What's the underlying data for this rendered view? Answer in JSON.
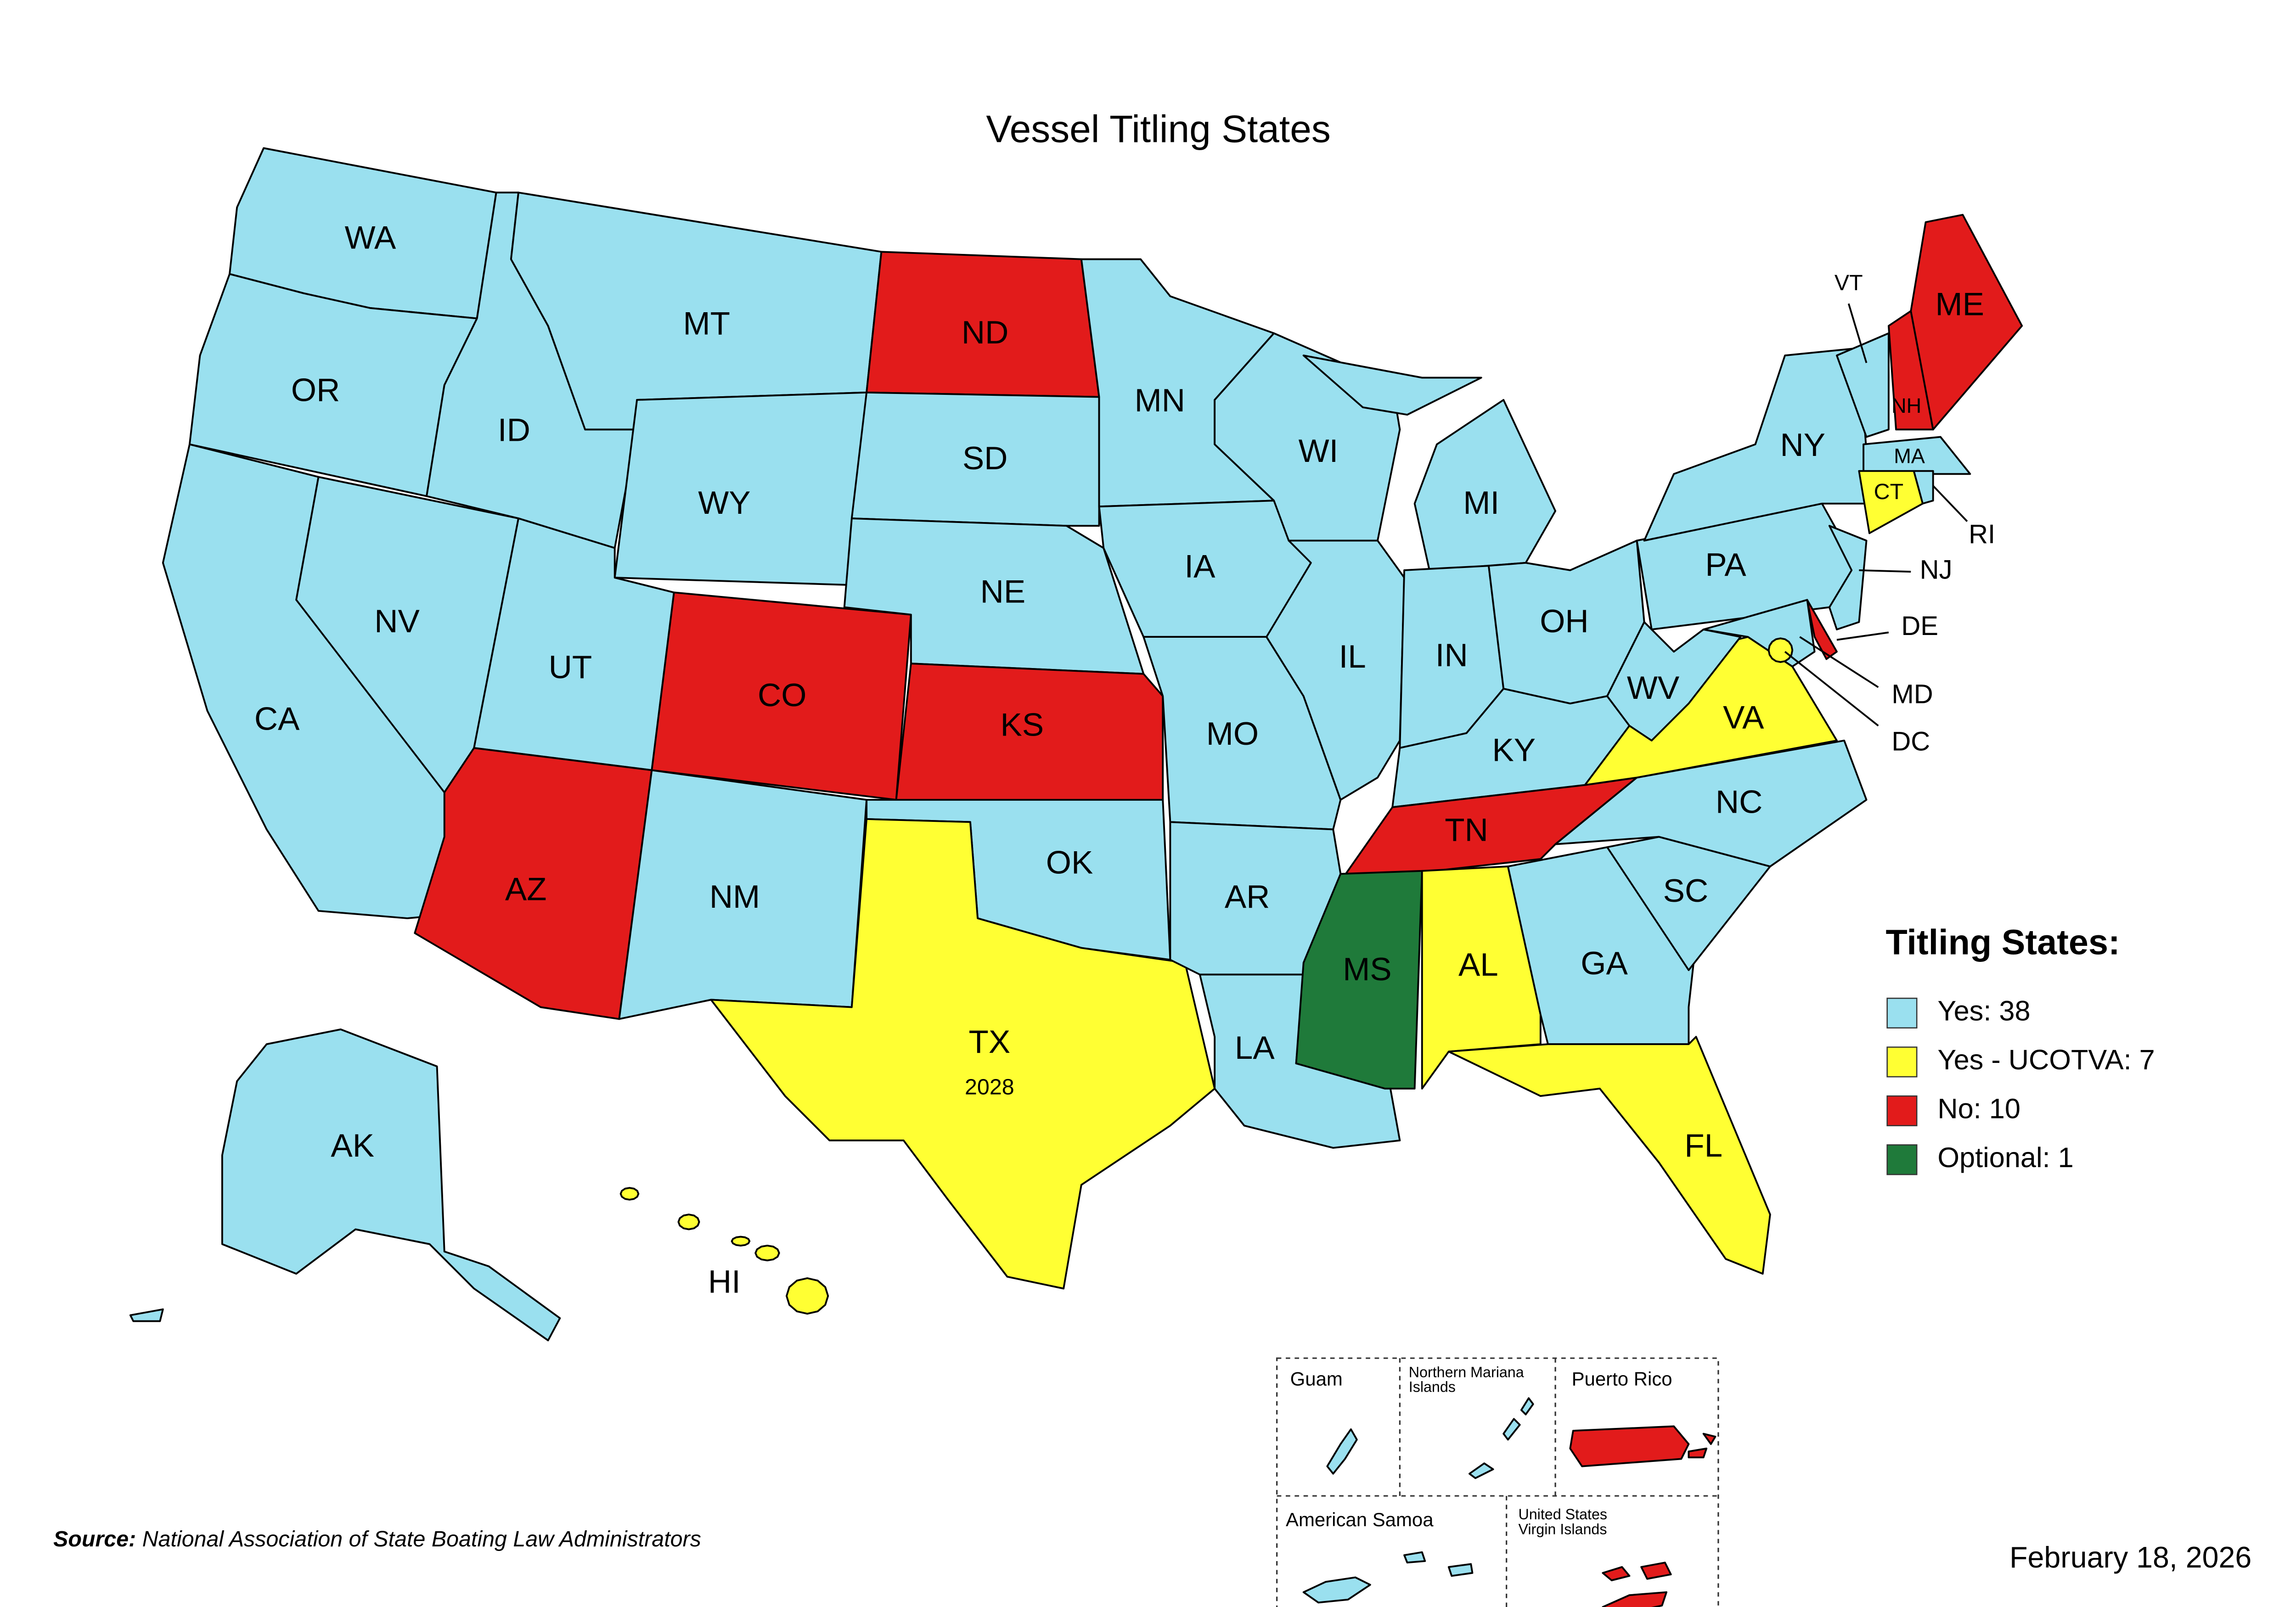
{
  "title": "Vessel Titling States",
  "legend": {
    "title": "Titling States:",
    "items": [
      {
        "label": "Yes: 38",
        "color": "#9ae0ef"
      },
      {
        "label": "Yes - UCOTVA: 7",
        "color": "#ffff33"
      },
      {
        "label": "No: 10",
        "color": "#e21b1b"
      },
      {
        "label": "Optional: 1",
        "color": "#1f7a3a"
      }
    ]
  },
  "states": [
    {
      "abbr": "WA",
      "category": 0
    },
    {
      "abbr": "OR",
      "category": 0
    },
    {
      "abbr": "CA",
      "category": 0
    },
    {
      "abbr": "NV",
      "category": 0
    },
    {
      "abbr": "ID",
      "category": 0
    },
    {
      "abbr": "MT",
      "category": 0
    },
    {
      "abbr": "WY",
      "category": 0
    },
    {
      "abbr": "UT",
      "category": 0
    },
    {
      "abbr": "CO",
      "category": 2
    },
    {
      "abbr": "AZ",
      "category": 2
    },
    {
      "abbr": "NM",
      "category": 0
    },
    {
      "abbr": "ND",
      "category": 2
    },
    {
      "abbr": "SD",
      "category": 0
    },
    {
      "abbr": "NE",
      "category": 0
    },
    {
      "abbr": "KS",
      "category": 2
    },
    {
      "abbr": "OK",
      "category": 0
    },
    {
      "abbr": "TX",
      "category": 1,
      "note": "2028"
    },
    {
      "abbr": "MN",
      "category": 0
    },
    {
      "abbr": "IA",
      "category": 0
    },
    {
      "abbr": "MO",
      "category": 0
    },
    {
      "abbr": "AR",
      "category": 0
    },
    {
      "abbr": "LA",
      "category": 0
    },
    {
      "abbr": "WI",
      "category": 0
    },
    {
      "abbr": "IL",
      "category": 0
    },
    {
      "abbr": "MI",
      "category": 0
    },
    {
      "abbr": "IN",
      "category": 0
    },
    {
      "abbr": "OH",
      "category": 0
    },
    {
      "abbr": "KY",
      "category": 0
    },
    {
      "abbr": "TN",
      "category": 2
    },
    {
      "abbr": "MS",
      "category": 3
    },
    {
      "abbr": "AL",
      "category": 1
    },
    {
      "abbr": "GA",
      "category": 0
    },
    {
      "abbr": "FL",
      "category": 1
    },
    {
      "abbr": "SC",
      "category": 0
    },
    {
      "abbr": "NC",
      "category": 0
    },
    {
      "abbr": "VA",
      "category": 1
    },
    {
      "abbr": "WV",
      "category": 0
    },
    {
      "abbr": "PA",
      "category": 0
    },
    {
      "abbr": "NY",
      "category": 0
    },
    {
      "abbr": "VT",
      "category": 0
    },
    {
      "abbr": "NH",
      "category": 2
    },
    {
      "abbr": "ME",
      "category": 2
    },
    {
      "abbr": "MA",
      "category": 0
    },
    {
      "abbr": "CT",
      "category": 1
    },
    {
      "abbr": "RI",
      "category": 0
    },
    {
      "abbr": "NJ",
      "category": 0
    },
    {
      "abbr": "DE",
      "category": 2
    },
    {
      "abbr": "MD",
      "category": 0
    },
    {
      "abbr": "DC",
      "category": 1
    },
    {
      "abbr": "AK",
      "category": 0
    },
    {
      "abbr": "HI",
      "category": 1
    }
  ],
  "territories": [
    {
      "name": "Guam",
      "category": 0
    },
    {
      "name": "Northern Mariana Islands",
      "category": 0
    },
    {
      "name": "Puerto Rico",
      "category": 2
    },
    {
      "name": "American Samoa",
      "category": 0
    },
    {
      "name": "United States Virgin Islands",
      "category": 2
    }
  ],
  "source": {
    "label": "Source:",
    "text": "National Association of State Boating Law Administrators"
  },
  "date": "February 18, 2026"
}
